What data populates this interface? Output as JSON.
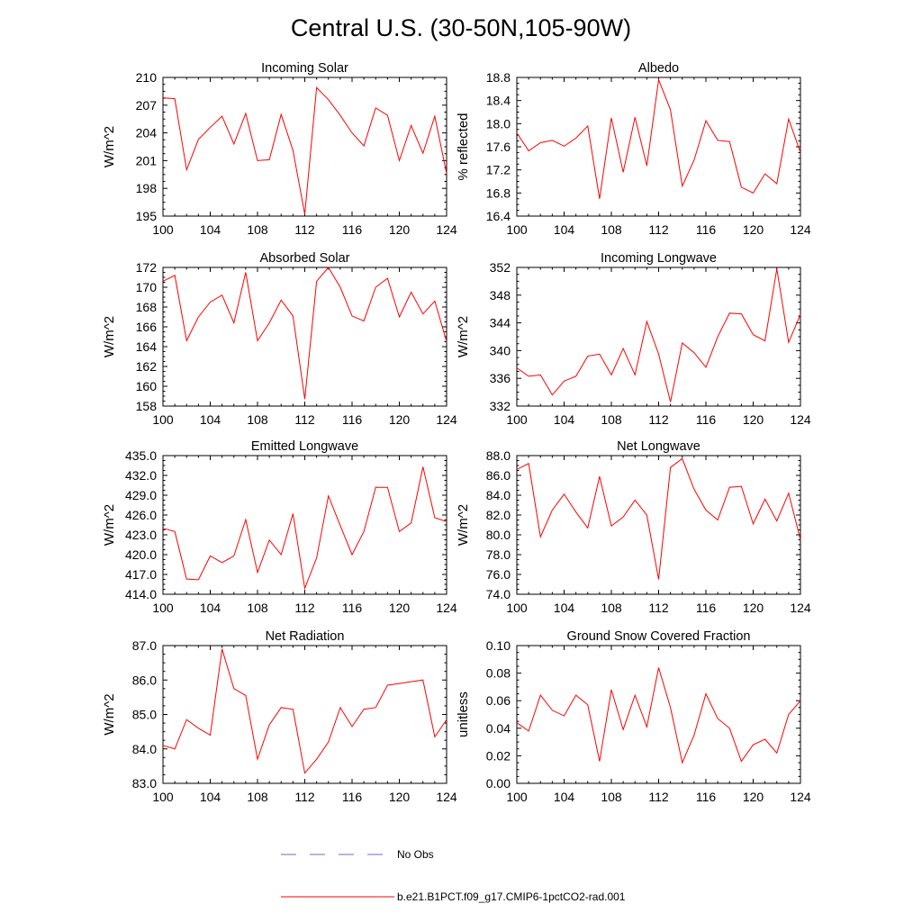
{
  "title": "Central U.S. (30-50N,105-90W)",
  "legend": [
    {
      "label": "No Obs",
      "color": "#6b6bc8",
      "style": "dashed"
    },
    {
      "label": "b.e21.B1PCT.f09_g17.CMIP6-1pctCO2-rad.001",
      "color": "#ff0000",
      "style": "solid"
    }
  ],
  "chart_data": [
    {
      "type": "line",
      "title": "Incoming Solar",
      "ylabel": "W/m^2",
      "xlim": [
        100,
        124
      ],
      "ylim": [
        195,
        210
      ],
      "xticks": [
        100,
        104,
        108,
        112,
        116,
        120,
        124
      ],
      "yticks": [
        "195",
        "198",
        "201",
        "204",
        "207",
        "210"
      ],
      "x": [
        100,
        101,
        102,
        103,
        104,
        105,
        106,
        107,
        108,
        109,
        110,
        111,
        112,
        113,
        114,
        115,
        116,
        117,
        118,
        119,
        120,
        121,
        122,
        123,
        124
      ],
      "series": [
        {
          "name": "b.e21.B1PCT.f09_g17.CMIP6-1pctCO2-rad.001",
          "color": "#ff0000",
          "values": [
            207.8,
            207.7,
            200.0,
            203.3,
            204.6,
            205.8,
            202.8,
            206.1,
            201.0,
            201.1,
            206.0,
            202.1,
            195.2,
            208.9,
            207.6,
            205.9,
            204.0,
            202.6,
            206.7,
            205.9,
            201.0,
            204.8,
            201.8,
            205.8,
            199.6
          ]
        }
      ]
    },
    {
      "type": "line",
      "title": "Albedo",
      "ylabel": "% reflected",
      "xlim": [
        100,
        124
      ],
      "ylim": [
        16.4,
        18.8
      ],
      "xticks": [
        100,
        104,
        108,
        112,
        116,
        120,
        124
      ],
      "yticks": [
        "16.4",
        "16.8",
        "17.2",
        "17.6",
        "18.0",
        "18.4",
        "18.8"
      ],
      "x": [
        100,
        101,
        102,
        103,
        104,
        105,
        106,
        107,
        108,
        109,
        110,
        111,
        112,
        113,
        114,
        115,
        116,
        117,
        118,
        119,
        120,
        121,
        122,
        123,
        124
      ],
      "series": [
        {
          "name": "b.e21.B1PCT.f09_g17.CMIP6-1pctCO2-rad.001",
          "color": "#ff0000",
          "values": [
            17.84,
            17.53,
            17.67,
            17.71,
            17.61,
            17.75,
            17.96,
            16.7,
            18.1,
            17.16,
            18.11,
            17.27,
            18.76,
            18.24,
            16.92,
            17.37,
            18.05,
            17.71,
            17.69,
            16.9,
            16.8,
            17.13,
            16.96,
            18.08,
            17.5
          ]
        }
      ]
    },
    {
      "type": "line",
      "title": "Absorbed Solar",
      "ylabel": "W/m^2",
      "xlim": [
        100,
        124
      ],
      "ylim": [
        158,
        172
      ],
      "xticks": [
        100,
        104,
        108,
        112,
        116,
        120,
        124
      ],
      "yticks": [
        "158",
        "160",
        "162",
        "164",
        "166",
        "168",
        "170",
        "172"
      ],
      "x": [
        100,
        101,
        102,
        103,
        104,
        105,
        106,
        107,
        108,
        109,
        110,
        111,
        112,
        113,
        114,
        115,
        116,
        117,
        118,
        119,
        120,
        121,
        122,
        123,
        124
      ],
      "series": [
        {
          "name": "b.e21.B1PCT.f09_g17.CMIP6-1pctCO2-rad.001",
          "color": "#ff0000",
          "values": [
            170.6,
            171.2,
            164.6,
            167.0,
            168.5,
            169.2,
            166.4,
            171.5,
            164.6,
            166.4,
            168.7,
            167.1,
            158.7,
            170.6,
            172.0,
            170.0,
            167.1,
            166.6,
            170.0,
            170.9,
            167.0,
            169.5,
            167.3,
            168.6,
            164.5
          ]
        }
      ]
    },
    {
      "type": "line",
      "title": "Incoming Longwave",
      "ylabel": "W/m^2",
      "xlim": [
        100,
        124
      ],
      "ylim": [
        332,
        352
      ],
      "xticks": [
        100,
        104,
        108,
        112,
        116,
        120,
        124
      ],
      "yticks": [
        "332",
        "336",
        "340",
        "344",
        "348",
        "352"
      ],
      "x": [
        100,
        101,
        102,
        103,
        104,
        105,
        106,
        107,
        108,
        109,
        110,
        111,
        112,
        113,
        114,
        115,
        116,
        117,
        118,
        119,
        120,
        121,
        122,
        123,
        124
      ],
      "series": [
        {
          "name": "b.e21.B1PCT.f09_g17.CMIP6-1pctCO2-rad.001",
          "color": "#ff0000",
          "values": [
            337.5,
            336.3,
            336.5,
            333.6,
            335.6,
            336.3,
            339.2,
            339.5,
            336.5,
            340.3,
            336.5,
            344.2,
            339.5,
            332.6,
            341.1,
            339.7,
            337.6,
            342.0,
            345.4,
            345.3,
            342.3,
            341.4,
            351.8,
            341.2,
            345.2
          ]
        }
      ]
    },
    {
      "type": "line",
      "title": "Emitted Longwave",
      "ylabel": "W/m^2",
      "xlim": [
        100,
        124
      ],
      "ylim": [
        414.0,
        435.0
      ],
      "xticks": [
        100,
        104,
        108,
        112,
        116,
        120,
        124
      ],
      "yticks": [
        "414.0",
        "417.0",
        "420.0",
        "423.0",
        "426.0",
        "429.0",
        "432.0",
        "435.0"
      ],
      "x": [
        100,
        101,
        102,
        103,
        104,
        105,
        106,
        107,
        108,
        109,
        110,
        111,
        112,
        113,
        114,
        115,
        116,
        117,
        118,
        119,
        120,
        121,
        122,
        123,
        124
      ],
      "series": [
        {
          "name": "b.e21.B1PCT.f09_g17.CMIP6-1pctCO2-rad.001",
          "color": "#ff0000",
          "values": [
            424.0,
            423.5,
            416.3,
            416.2,
            419.8,
            418.8,
            419.8,
            425.3,
            417.3,
            422.2,
            420.0,
            426.2,
            414.9,
            419.5,
            428.9,
            424.4,
            420.0,
            423.5,
            430.2,
            430.2,
            423.5,
            424.8,
            433.3,
            425.6,
            425.0
          ]
        }
      ]
    },
    {
      "type": "line",
      "title": "Net Longwave",
      "ylabel": "W/m^2",
      "xlim": [
        100,
        124
      ],
      "ylim": [
        74.0,
        88.0
      ],
      "xticks": [
        100,
        104,
        108,
        112,
        116,
        120,
        124
      ],
      "yticks": [
        "74.0",
        "76.0",
        "78.0",
        "80.0",
        "82.0",
        "84.0",
        "86.0",
        "88.0"
      ],
      "x": [
        100,
        101,
        102,
        103,
        104,
        105,
        106,
        107,
        108,
        109,
        110,
        111,
        112,
        113,
        114,
        115,
        116,
        117,
        118,
        119,
        120,
        121,
        122,
        123,
        124
      ],
      "series": [
        {
          "name": "b.e21.B1PCT.f09_g17.CMIP6-1pctCO2-rad.001",
          "color": "#ff0000",
          "values": [
            86.6,
            87.2,
            79.8,
            82.5,
            84.1,
            82.3,
            80.7,
            85.9,
            80.9,
            81.8,
            83.5,
            82.0,
            75.5,
            86.8,
            87.7,
            84.6,
            82.5,
            81.5,
            84.8,
            84.9,
            81.1,
            83.6,
            81.4,
            84.2,
            79.5
          ]
        }
      ]
    },
    {
      "type": "line",
      "title": "Net Radiation",
      "ylabel": "W/m^2",
      "xlim": [
        100,
        124
      ],
      "ylim": [
        83.0,
        87.0
      ],
      "xticks": [
        100,
        104,
        108,
        112,
        116,
        120,
        124
      ],
      "yticks": [
        "83.0",
        "84.0",
        "85.0",
        "86.0",
        "87.0"
      ],
      "x": [
        100,
        101,
        102,
        103,
        104,
        105,
        106,
        107,
        108,
        109,
        110,
        111,
        112,
        113,
        114,
        115,
        116,
        117,
        118,
        119,
        120,
        121,
        122,
        123,
        124
      ],
      "series": [
        {
          "name": "b.e21.B1PCT.f09_g17.CMIP6-1pctCO2-rad.001",
          "color": "#ff0000",
          "values": [
            84.1,
            84.0,
            84.85,
            84.6,
            84.4,
            86.9,
            85.75,
            85.55,
            83.7,
            84.7,
            85.2,
            85.15,
            83.3,
            83.7,
            84.2,
            85.2,
            84.65,
            85.15,
            85.2,
            85.85,
            85.9,
            85.95,
            86.0,
            84.35,
            84.85
          ]
        }
      ]
    },
    {
      "type": "line",
      "title": "Ground Snow Covered Fraction",
      "ylabel": "unitless",
      "xlim": [
        100,
        124
      ],
      "ylim": [
        0.0,
        0.1
      ],
      "xticks": [
        100,
        104,
        108,
        112,
        116,
        120,
        124
      ],
      "yticks": [
        "0.00",
        "0.02",
        "0.04",
        "0.06",
        "0.08",
        "0.10"
      ],
      "x": [
        100,
        101,
        102,
        103,
        104,
        105,
        106,
        107,
        108,
        109,
        110,
        111,
        112,
        113,
        114,
        115,
        116,
        117,
        118,
        119,
        120,
        121,
        122,
        123,
        124
      ],
      "series": [
        {
          "name": "b.e21.B1PCT.f09_g17.CMIP6-1pctCO2-rad.001",
          "color": "#ff0000",
          "values": [
            0.044,
            0.038,
            0.064,
            0.053,
            0.049,
            0.064,
            0.057,
            0.016,
            0.068,
            0.039,
            0.064,
            0.041,
            0.084,
            0.055,
            0.015,
            0.035,
            0.065,
            0.047,
            0.04,
            0.016,
            0.028,
            0.032,
            0.022,
            0.05,
            0.06
          ]
        }
      ]
    }
  ]
}
